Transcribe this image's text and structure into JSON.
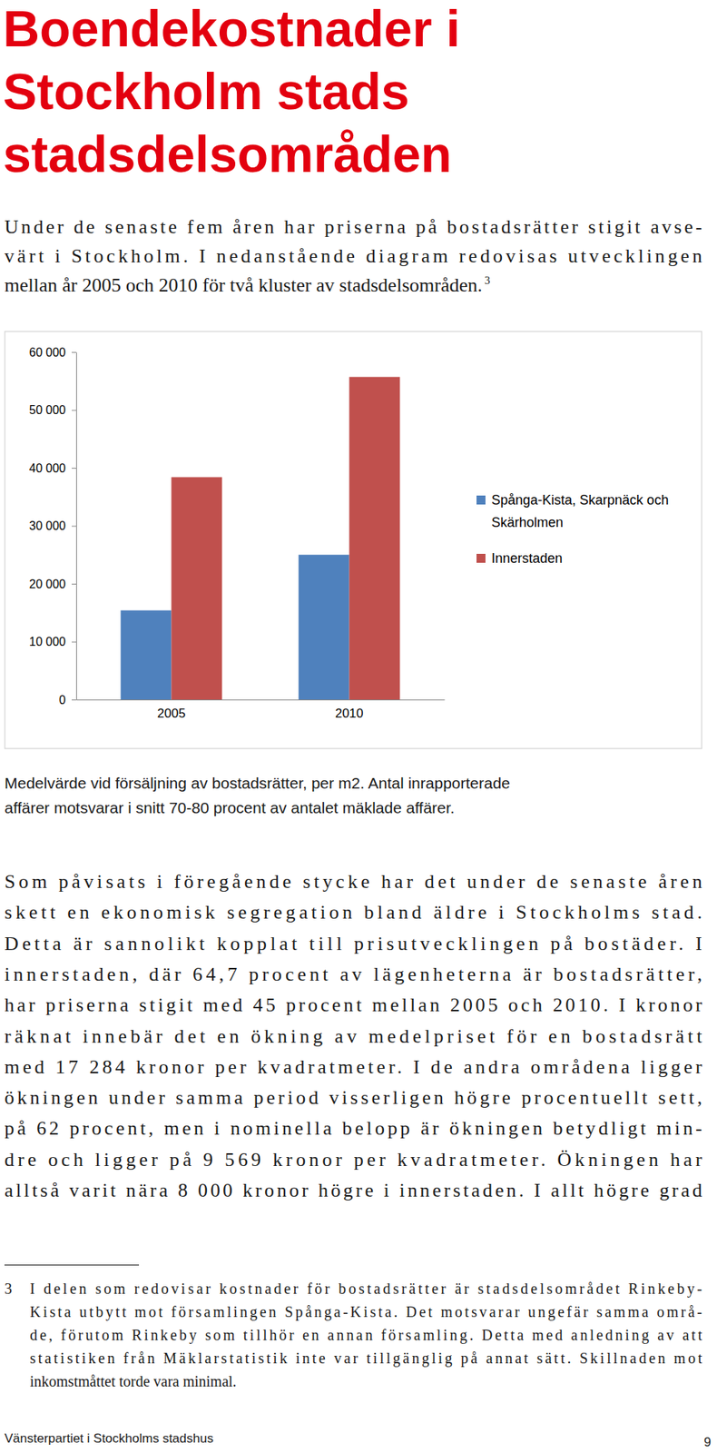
{
  "page": {
    "title_lines": [
      "Boendekostnader i",
      "Stockholm stads",
      "stadsdelsområden"
    ],
    "intro_lines": [
      "Under de senaste fem åren har priserna på bostadsrätter stigit avse-",
      "värt i Stockholm. I nedanstående diagram redovisas utvecklingen",
      "mellan år 2005 och 2010 för två kluster av stadsdelsområden."
    ],
    "intro_footnote_ref": "3",
    "caption_lines": [
      "Medelvärde vid försäljning av bostadsrätter, per m2. Antal inrapporterade",
      "affärer motsvarar i snitt 70-80 procent av antalet mäklade affärer."
    ],
    "body_lines": [
      "Som påvisats i föregående stycke har det under de senaste åren",
      "skett en ekonomisk segregation bland äldre i Stockholms stad.",
      "Detta är sannolikt kopplat till prisutvecklingen på bostäder. I",
      "innerstaden, där 64,7 procent av lägenheterna är bostadsrätter,",
      "har priserna stigit med 45 procent mellan 2005 och 2010. I kronor",
      "räknat innebär det en ökning av medelpriset för en bostadsrätt",
      "med 17 284 kronor per kvadratmeter. I de andra områdena ligger",
      "ökningen under samma period visserligen högre procentuellt sett,",
      "på 62 procent, men i nominella belopp är ökningen betydligt min-",
      "dre och ligger på 9 569 kronor per kvadratmeter. Ökningen har",
      "alltså varit nära 8 000 kronor högre i innerstaden. I allt högre grad"
    ],
    "footnote": {
      "number": "3",
      "lines": [
        "I delen som redovisar kostnader för bostadsrätter är stadsdelsområdet Rinkeby-",
        "Kista utbytt mot församlingen Spånga-Kista. Det motsvarar ungefär samma områ-",
        "de, förutom Rinkeby som tillhör en annan församling. Detta med anledning av att",
        "statistiken från Mäklarstatistik inte var tillgänglig på annat sätt. Skillnaden mot",
        "inkomstmåttet torde vara minimal."
      ]
    },
    "footer": {
      "text": "Vänsterpartiet i Stockholms stadshus",
      "page_number": "9"
    }
  },
  "chart_data": {
    "type": "bar",
    "categories": [
      "2005",
      "2010"
    ],
    "series": [
      {
        "name": "Spånga-Kista, Skarpnäck och Skärholmen",
        "color": "#4f81bd",
        "values": [
          15400,
          25000
        ]
      },
      {
        "name": "Innerstaden",
        "color": "#c0504d",
        "values": [
          38400,
          55700
        ]
      }
    ],
    "ylim": [
      0,
      60000
    ],
    "yticks": [
      0,
      {
        "value": 10000,
        "label": "10 000"
      },
      {
        "value": 20000,
        "label": "20 000"
      },
      {
        "value": 30000,
        "label": "30 000"
      },
      {
        "value": 40000,
        "label": "40 000"
      },
      {
        "value": 50000,
        "label": "50 000"
      },
      {
        "value": 60000,
        "label": "60 000"
      }
    ],
    "grid": false,
    "legend": "right"
  }
}
